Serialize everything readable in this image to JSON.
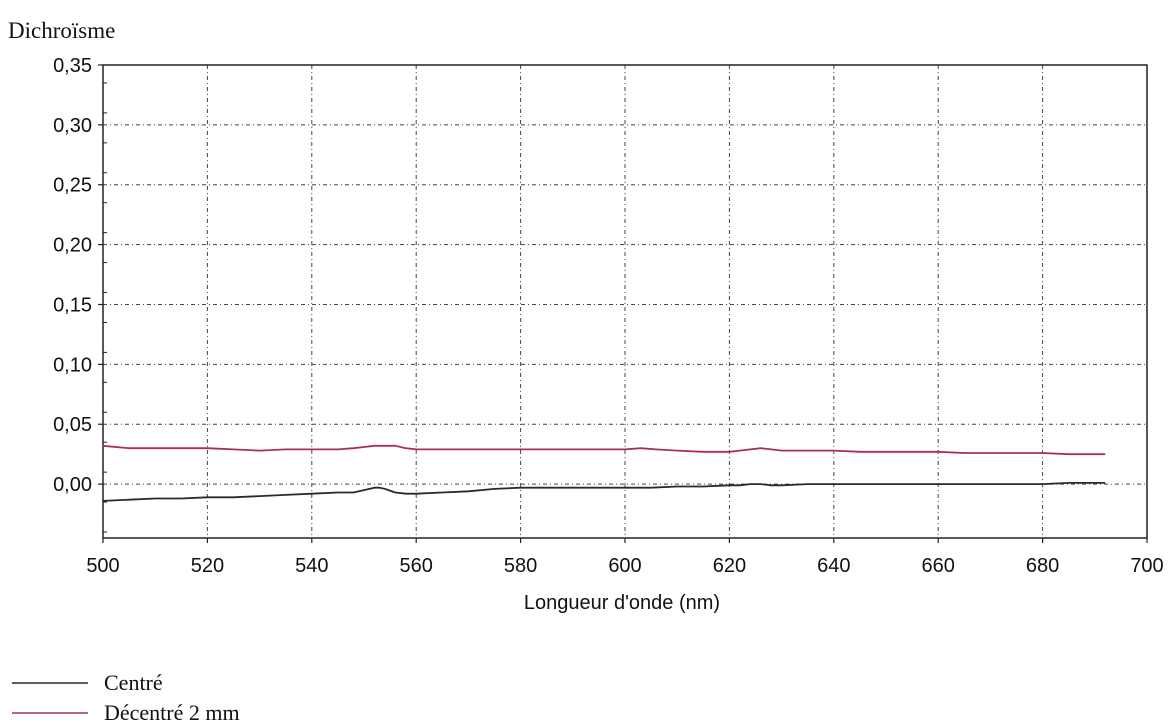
{
  "chart_data": {
    "type": "line",
    "ylabel": "Dichroïsme",
    "xlabel": "Longueur d'onde (nm)",
    "xlim": [
      500,
      700
    ],
    "ylim": [
      -0.045,
      0.35
    ],
    "x_ticks": [
      500,
      520,
      540,
      560,
      580,
      600,
      620,
      640,
      660,
      680,
      700
    ],
    "y_ticks": [
      0.0,
      0.05,
      0.1,
      0.15,
      0.2,
      0.25,
      0.3,
      0.35
    ],
    "y_tick_labels": [
      "0,00",
      "0,05",
      "0,10",
      "0,15",
      "0,20",
      "0,25",
      "0,30",
      "0,35"
    ],
    "grid": true,
    "legend_position": "bottom-left",
    "series": [
      {
        "name": "Centré",
        "color": "#2a2a2a",
        "x": [
          500,
          505,
          510,
          515,
          520,
          525,
          530,
          535,
          540,
          545,
          548,
          550,
          552,
          553,
          554,
          556,
          558,
          560,
          565,
          570,
          575,
          580,
          585,
          590,
          595,
          600,
          605,
          610,
          615,
          620,
          622,
          624,
          626,
          628,
          630,
          635,
          640,
          645,
          650,
          655,
          660,
          665,
          670,
          675,
          680,
          685,
          690,
          692
        ],
        "y": [
          -0.014,
          -0.013,
          -0.012,
          -0.012,
          -0.011,
          -0.011,
          -0.01,
          -0.009,
          -0.008,
          -0.007,
          -0.007,
          -0.005,
          -0.003,
          -0.003,
          -0.004,
          -0.007,
          -0.008,
          -0.008,
          -0.007,
          -0.006,
          -0.004,
          -0.003,
          -0.003,
          -0.003,
          -0.003,
          -0.003,
          -0.003,
          -0.002,
          -0.002,
          -0.001,
          -0.001,
          0.0,
          0.0,
          -0.001,
          -0.001,
          0.0,
          0.0,
          0.0,
          0.0,
          0.0,
          0.0,
          0.0,
          0.0,
          0.0,
          0.0,
          0.001,
          0.001,
          0.001
        ]
      },
      {
        "name": "Décentré 2 mm",
        "color": "#a8324e",
        "x": [
          500,
          505,
          510,
          515,
          520,
          525,
          530,
          535,
          540,
          545,
          548,
          550,
          552,
          554,
          556,
          558,
          560,
          565,
          570,
          575,
          580,
          585,
          590,
          595,
          600,
          603,
          606,
          610,
          615,
          620,
          622,
          624,
          626,
          628,
          630,
          635,
          640,
          645,
          650,
          655,
          660,
          665,
          670,
          675,
          680,
          685,
          690,
          692
        ],
        "y": [
          0.032,
          0.03,
          0.03,
          0.03,
          0.03,
          0.029,
          0.028,
          0.029,
          0.029,
          0.029,
          0.03,
          0.031,
          0.032,
          0.032,
          0.032,
          0.03,
          0.029,
          0.029,
          0.029,
          0.029,
          0.029,
          0.029,
          0.029,
          0.029,
          0.029,
          0.03,
          0.029,
          0.028,
          0.027,
          0.027,
          0.028,
          0.029,
          0.03,
          0.029,
          0.028,
          0.028,
          0.028,
          0.027,
          0.027,
          0.027,
          0.027,
          0.026,
          0.026,
          0.026,
          0.026,
          0.025,
          0.025,
          0.025
        ]
      }
    ]
  }
}
